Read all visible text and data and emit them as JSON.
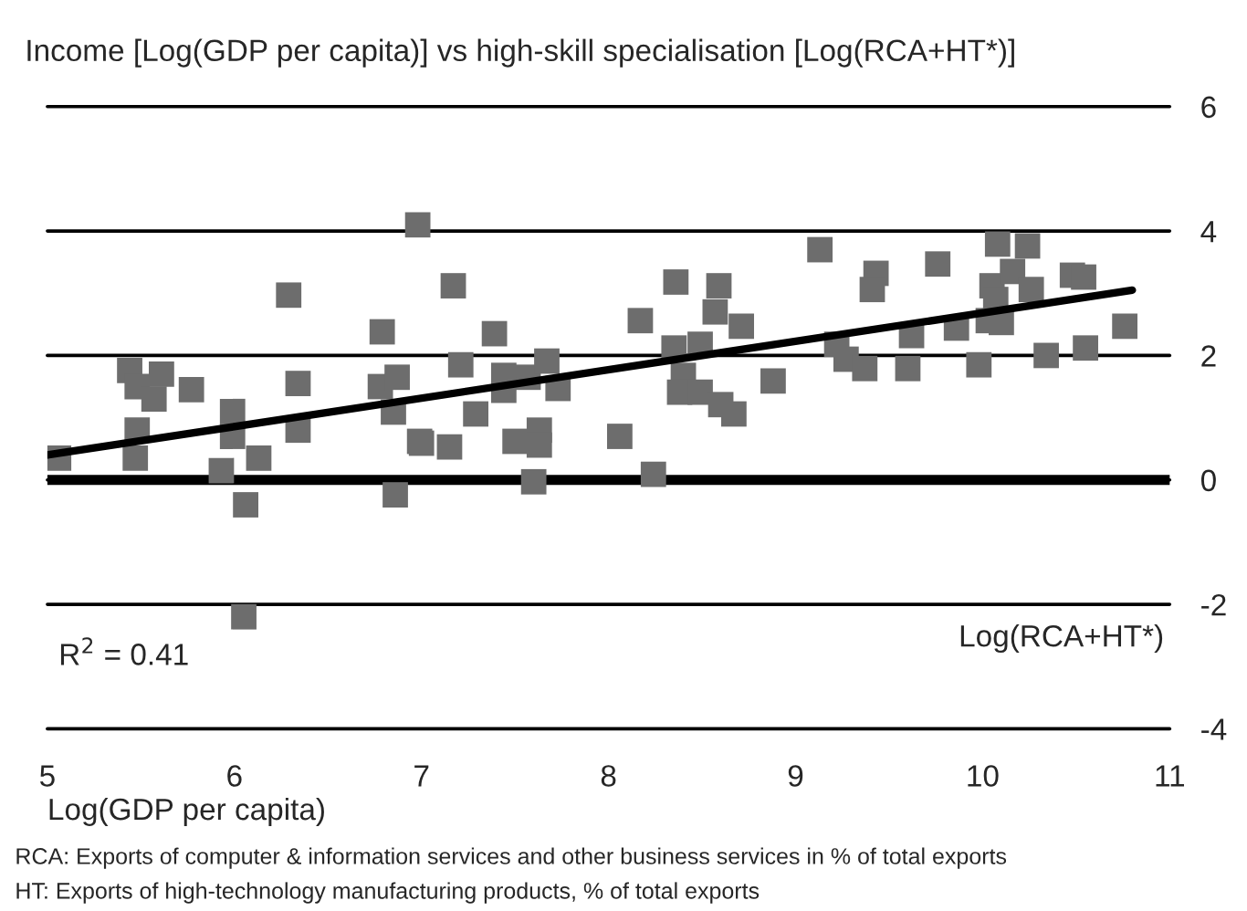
{
  "chart_data": {
    "type": "scatter",
    "title": "Income [Log(GDP per capita)] vs high-skill specialisation [Log(RCA+HT*)]",
    "xlabel": "Log(GDP per capita)",
    "ylabel": "Log(RCA+HT*)",
    "series": [
      {
        "color": "#6d6d6d",
        "marker": "square",
        "x": [
          5.06,
          5.44,
          5.48,
          5.61,
          5.57,
          5.48,
          5.47,
          5.77,
          5.99,
          5.99,
          5.93,
          6.06,
          6.05,
          6.13,
          6.29,
          6.34,
          6.34,
          6.79,
          6.78,
          6.85,
          6.87,
          6.99,
          6.98,
          6.86,
          7.17,
          8.36,
          8.59,
          8.57,
          8.17,
          8.71,
          7.39,
          7.21,
          7.44,
          7.57,
          7.67,
          7.73,
          7.44,
          8.35,
          8.49,
          8.4,
          8.38,
          8.49,
          8.6,
          8.67,
          8.88,
          7.29,
          7.0,
          7.15,
          7.5,
          7.63,
          7.63,
          8.06,
          7.6,
          8.24,
          9.13,
          10.08,
          10.24,
          9.43,
          9.41,
          9.76,
          10.05,
          10.16,
          10.26,
          10.48,
          10.54,
          10.03,
          10.1,
          9.62,
          9.86,
          10.76,
          9.22,
          9.27,
          9.37,
          9.6,
          9.98,
          10.34,
          10.55,
          10.07
        ],
        "values": [
          0.35,
          1.76,
          1.5,
          1.7,
          1.3,
          0.8,
          0.35,
          1.45,
          1.1,
          0.7,
          0.15,
          -0.4,
          -2.2,
          0.35,
          2.97,
          0.8,
          1.55,
          2.38,
          1.5,
          1.09,
          1.65,
          0.62,
          4.1,
          -0.24,
          3.12,
          3.18,
          3.12,
          2.7,
          2.56,
          2.47,
          2.35,
          1.85,
          1.68,
          1.65,
          1.91,
          1.47,
          1.44,
          2.12,
          2.18,
          1.68,
          1.41,
          1.41,
          1.21,
          1.06,
          1.59,
          1.06,
          0.59,
          0.53,
          0.62,
          0.8,
          0.56,
          0.7,
          -0.03,
          0.09,
          3.7,
          3.79,
          3.76,
          3.32,
          3.06,
          3.47,
          3.12,
          3.35,
          3.06,
          3.29,
          3.26,
          2.56,
          2.53,
          2.32,
          2.44,
          2.47,
          2.18,
          1.94,
          1.79,
          1.79,
          1.85,
          2.0,
          2.12,
          2.9
        ]
      },
      {
        "type": "line",
        "color": "#000000",
        "x": [
          5,
          10.8
        ],
        "values": [
          0.4,
          3.05
        ]
      }
    ],
    "xlim": [
      5,
      11
    ],
    "xticks": [
      5,
      6,
      7,
      8,
      9,
      10,
      11
    ],
    "ylim": [
      -4,
      6
    ],
    "yticks": [
      -4,
      -2,
      0,
      2,
      4,
      6
    ],
    "grid": "y",
    "ref_lines": [
      {
        "axis": "y",
        "value": 0,
        "label": null,
        "color": "#000000"
      }
    ],
    "annotations": [
      "R$^{2}$ = 0.41",
      "RCA: Exports of computer & information services and other business services in % of total exports",
      "HT: Exports of high-technology manufacturing products, % of total exports"
    ]
  }
}
